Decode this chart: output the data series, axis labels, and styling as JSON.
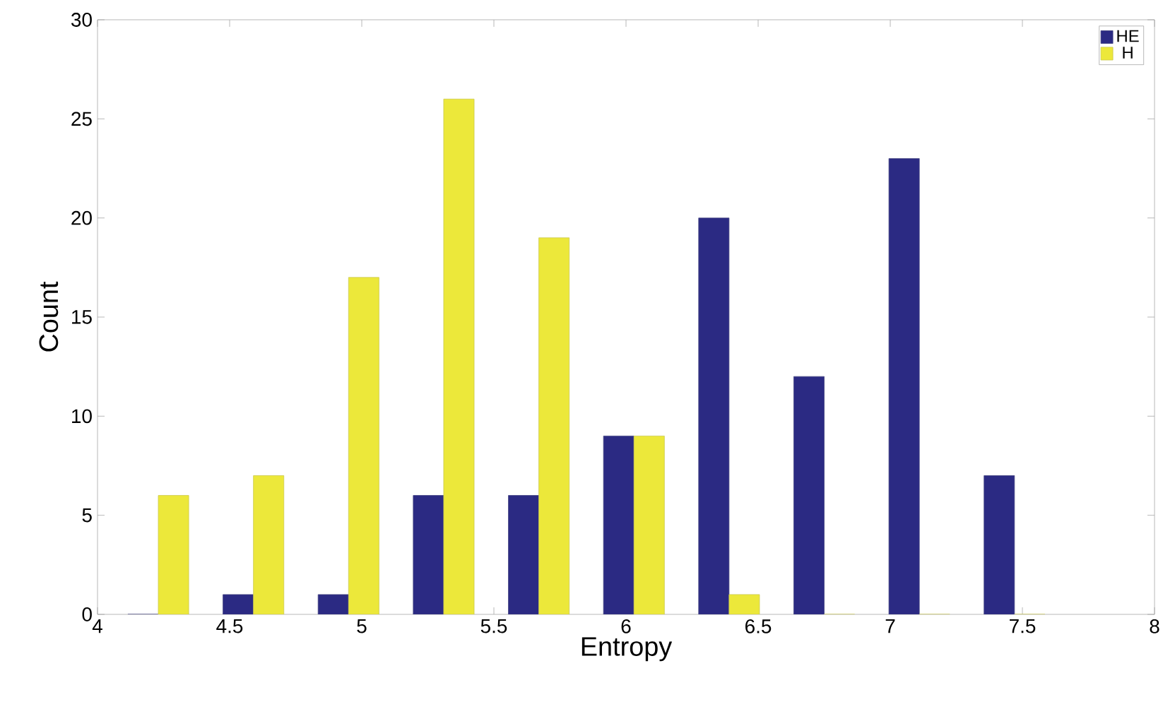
{
  "chart_data": {
    "type": "bar",
    "xlabel": "Entropy",
    "ylabel": "Count",
    "x": [
      4.23,
      4.59,
      4.95,
      5.31,
      5.67,
      6.03,
      6.39,
      6.75,
      7.11,
      7.47
    ],
    "series": [
      {
        "name": "HE",
        "color": "#2b2a83",
        "values": [
          0,
          1,
          1,
          6,
          6,
          9,
          20,
          12,
          23,
          7
        ]
      },
      {
        "name": "H",
        "color": "#ece83a",
        "values": [
          6,
          7,
          17,
          26,
          19,
          9,
          1,
          0,
          0,
          0
        ]
      }
    ],
    "xlim": [
      4,
      8
    ],
    "ylim": [
      0,
      30
    ],
    "xticks": [
      4,
      4.5,
      5,
      5.5,
      6,
      6.5,
      7,
      7.5,
      8
    ],
    "yticks": [
      0,
      5,
      10,
      15,
      20,
      25,
      30
    ],
    "legend": "top right",
    "grid": false
  }
}
